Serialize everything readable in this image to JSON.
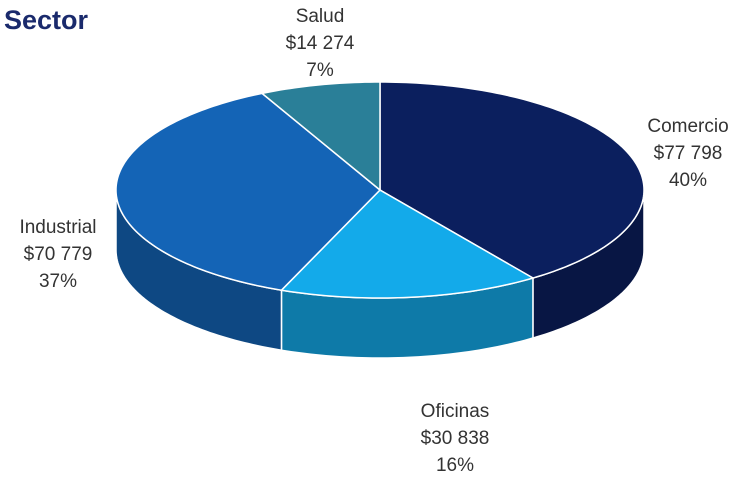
{
  "chart_data": {
    "type": "pie3d",
    "title": "Sector",
    "categories": [
      "Comercio",
      "Oficinas",
      "Industrial",
      "Salud"
    ],
    "values": [
      77798,
      30838,
      70779,
      14274
    ],
    "value_labels": [
      "$77 798",
      "$30 838",
      "$70 779",
      "$14 274"
    ],
    "percents": [
      40,
      16,
      37,
      7
    ],
    "percent_labels": [
      "40%",
      "16%",
      "37%",
      "7%"
    ],
    "colors": [
      "#0b1f5e",
      "#13aaea",
      "#1464b6",
      "#2a7f98"
    ]
  }
}
